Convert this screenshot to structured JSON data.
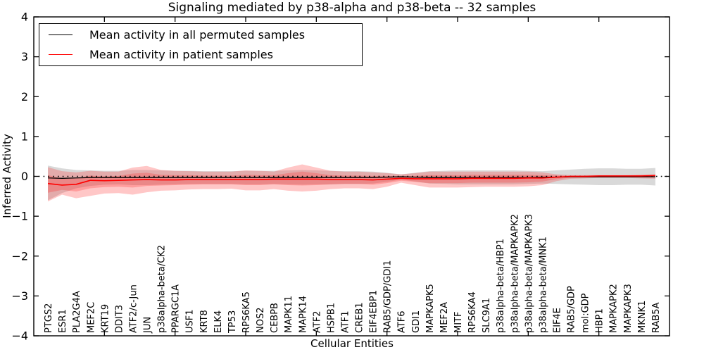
{
  "chart_data": {
    "type": "line",
    "title": "Signaling mediated by p38-alpha and p38-beta -- 32 samples",
    "xlabel": "Cellular Entities",
    "ylabel": "Inferred Activity",
    "ylim": [
      -4,
      4
    ],
    "grid": false,
    "legend_position": "upper left",
    "x_major_tick_step": 5,
    "colors": {
      "permuted_line": "#000000",
      "patient_line": "#ff0000",
      "permuted_band": "rgba(0,0,0,0.15)",
      "patient_band": "rgba(255,40,40,0.26)",
      "zero_line": "#000000"
    },
    "yticks": [
      {
        "v": -4,
        "label": "−4"
      },
      {
        "v": -3,
        "label": "−3"
      },
      {
        "v": -2,
        "label": "−2"
      },
      {
        "v": -1,
        "label": "−1"
      },
      {
        "v": 0,
        "label": "0"
      },
      {
        "v": 1,
        "label": "1"
      },
      {
        "v": 2,
        "label": "2"
      },
      {
        "v": 3,
        "label": "3"
      },
      {
        "v": 4,
        "label": "4"
      }
    ],
    "categories": [
      "PTGS2",
      "ESR1",
      "PLA2G4A",
      "MEF2C",
      "KRT19",
      "DDIT3",
      "ATF2/c-Jun",
      "JUN",
      "p38alpha-beta/CK2",
      "PPARGC1A",
      "USF1",
      "KRT8",
      "ELK4",
      "TP53",
      "RPS6KA5",
      "NOS2",
      "CEBPB",
      "MAPK11",
      "MAPK14",
      "ATF2",
      "HSPB1",
      "ATF1",
      "CREB1",
      "EIF4EBP1",
      "RAB5/GDP/GDI1",
      "ATF6",
      "GDI1",
      "MAPKAPK5",
      "MEF2A",
      "MITF",
      "RPS6KA4",
      "SLC9A1",
      "p38alpha-beta/HBP1",
      "p38alpha-beta/MAPKAPK2",
      "p38alpha-beta/MAPKAPK3",
      "p38alpha-beta/MNK1",
      "EIF4E",
      "RAB5/GDP",
      "mol:GDP",
      "HBP1",
      "MAPKAPK2",
      "MAPKAPK3",
      "MKNK1",
      "RAB5A"
    ],
    "series": [
      {
        "name": "Mean activity in all permuted samples",
        "color": "#000000",
        "width": 1.3,
        "values": [
          -0.04,
          -0.05,
          -0.04,
          -0.03,
          -0.03,
          -0.03,
          -0.03,
          -0.03,
          -0.03,
          -0.03,
          -0.03,
          -0.03,
          -0.03,
          -0.03,
          -0.03,
          -0.03,
          -0.03,
          -0.03,
          -0.03,
          -0.03,
          -0.03,
          -0.03,
          -0.03,
          -0.03,
          -0.02,
          -0.01,
          -0.02,
          -0.03,
          -0.03,
          -0.03,
          -0.03,
          -0.03,
          -0.03,
          -0.03,
          -0.03,
          -0.02,
          -0.02,
          -0.01,
          -0.01,
          -0.01,
          -0.01,
          -0.01,
          -0.01,
          -0.01
        ]
      },
      {
        "name": "Mean activity in patient samples",
        "color": "#ff0000",
        "width": 1.6,
        "values": [
          -0.18,
          -0.22,
          -0.2,
          -0.1,
          -0.11,
          -0.1,
          -0.09,
          -0.08,
          -0.09,
          -0.09,
          -0.08,
          -0.08,
          -0.08,
          -0.08,
          -0.08,
          -0.08,
          -0.07,
          -0.07,
          -0.07,
          -0.07,
          -0.08,
          -0.08,
          -0.08,
          -0.09,
          -0.07,
          -0.05,
          -0.06,
          -0.06,
          -0.06,
          -0.06,
          -0.05,
          -0.05,
          -0.05,
          -0.05,
          -0.04,
          -0.04,
          -0.02,
          0.0,
          0.0,
          0.01,
          0.01,
          0.01,
          0.01,
          0.02
        ]
      }
    ],
    "bands": [
      {
        "name": "permuted-samples-band",
        "color": "rgba(0,0,0,0.15)",
        "upper": [
          0.27,
          0.2,
          0.16,
          0.15,
          0.14,
          0.14,
          0.16,
          0.16,
          0.15,
          0.14,
          0.14,
          0.13,
          0.13,
          0.13,
          0.14,
          0.14,
          0.14,
          0.15,
          0.16,
          0.15,
          0.14,
          0.13,
          0.13,
          0.12,
          0.09,
          0.05,
          0.09,
          0.13,
          0.14,
          0.15,
          0.15,
          0.15,
          0.15,
          0.15,
          0.14,
          0.13,
          0.15,
          0.17,
          0.19,
          0.2,
          0.2,
          0.19,
          0.19,
          0.21
        ],
        "lower": [
          -0.6,
          -0.42,
          -0.3,
          -0.24,
          -0.21,
          -0.2,
          -0.22,
          -0.22,
          -0.21,
          -0.2,
          -0.19,
          -0.19,
          -0.19,
          -0.19,
          -0.2,
          -0.2,
          -0.19,
          -0.2,
          -0.21,
          -0.2,
          -0.2,
          -0.19,
          -0.19,
          -0.18,
          -0.14,
          -0.08,
          -0.13,
          -0.18,
          -0.19,
          -0.2,
          -0.2,
          -0.2,
          -0.2,
          -0.2,
          -0.19,
          -0.18,
          -0.19,
          -0.2,
          -0.21,
          -0.22,
          -0.22,
          -0.21,
          -0.21,
          -0.23
        ]
      },
      {
        "name": "patient-samples-band-outer",
        "color": "rgba(255,40,40,0.26)",
        "upper": [
          0.23,
          0.13,
          0.1,
          0.14,
          0.12,
          0.12,
          0.22,
          0.26,
          0.16,
          0.14,
          0.13,
          0.12,
          0.12,
          0.12,
          0.15,
          0.14,
          0.12,
          0.22,
          0.3,
          0.22,
          0.14,
          0.12,
          0.12,
          0.1,
          0.08,
          0.05,
          0.08,
          0.12,
          0.12,
          0.12,
          0.12,
          0.12,
          0.12,
          0.12,
          0.12,
          0.1,
          0.05,
          0.03,
          0.03,
          0.03,
          0.03,
          0.03,
          0.04,
          0.05
        ],
        "lower": [
          -0.63,
          -0.46,
          -0.55,
          -0.49,
          -0.43,
          -0.42,
          -0.46,
          -0.4,
          -0.36,
          -0.35,
          -0.33,
          -0.32,
          -0.32,
          -0.31,
          -0.35,
          -0.35,
          -0.32,
          -0.36,
          -0.38,
          -0.36,
          -0.32,
          -0.3,
          -0.3,
          -0.32,
          -0.26,
          -0.16,
          -0.22,
          -0.28,
          -0.28,
          -0.28,
          -0.27,
          -0.26,
          -0.26,
          -0.26,
          -0.25,
          -0.22,
          -0.12,
          -0.06,
          -0.05,
          -0.04,
          -0.04,
          -0.04,
          -0.05,
          -0.06
        ]
      },
      {
        "name": "patient-samples-band-inner",
        "color": "rgba(255,40,40,0.26)",
        "upper": [
          0.03,
          -0.05,
          -0.05,
          0.02,
          0.0,
          0.01,
          0.07,
          0.09,
          0.04,
          0.03,
          0.03,
          0.02,
          0.02,
          0.02,
          0.04,
          0.03,
          0.03,
          0.08,
          0.12,
          0.08,
          0.03,
          0.02,
          0.02,
          0.01,
          0.01,
          0.0,
          0.01,
          0.03,
          0.03,
          0.03,
          0.04,
          0.04,
          0.04,
          0.04,
          0.04,
          0.03,
          0.02,
          0.02,
          0.02,
          0.02,
          0.02,
          0.02,
          0.03,
          0.04
        ],
        "lower": [
          -0.41,
          -0.34,
          -0.38,
          -0.3,
          -0.27,
          -0.26,
          -0.28,
          -0.24,
          -0.23,
          -0.22,
          -0.21,
          -0.2,
          -0.2,
          -0.2,
          -0.22,
          -0.22,
          -0.2,
          -0.22,
          -0.23,
          -0.22,
          -0.2,
          -0.19,
          -0.19,
          -0.21,
          -0.17,
          -0.11,
          -0.14,
          -0.17,
          -0.17,
          -0.17,
          -0.16,
          -0.16,
          -0.16,
          -0.16,
          -0.15,
          -0.13,
          -0.07,
          -0.03,
          -0.03,
          -0.02,
          -0.02,
          -0.02,
          -0.02,
          -0.02
        ]
      }
    ],
    "zero_line": {
      "style": "dotted",
      "color": "#000000",
      "y": 0
    }
  }
}
